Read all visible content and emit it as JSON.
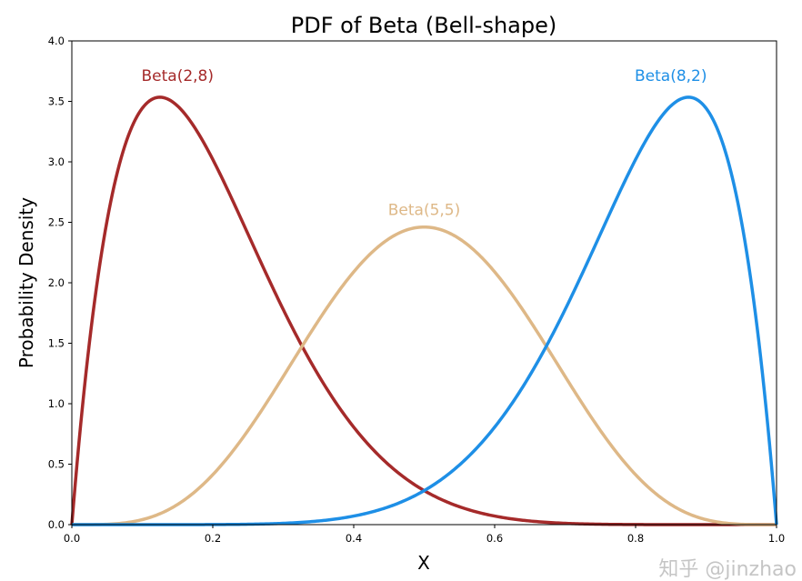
{
  "chart_data": {
    "type": "line",
    "title": "PDF of Beta (Bell-shape)",
    "xlabel": "X",
    "ylabel": "Probability Density",
    "xlim": [
      0,
      1
    ],
    "ylim": [
      0,
      4
    ],
    "xticks": [
      "0.0",
      "0.2",
      "0.4",
      "0.6",
      "0.8",
      "1.0"
    ],
    "yticks": [
      "0.0",
      "0.5",
      "1.0",
      "1.5",
      "2.0",
      "2.5",
      "3.0",
      "3.5",
      "4.0"
    ],
    "grid": false,
    "legend": "none",
    "series": [
      {
        "name": "Beta(2,8)",
        "alpha": 2,
        "beta": 8,
        "color": "#a52a2a",
        "label_pos": [
          0.15,
          3.67
        ]
      },
      {
        "name": "Beta(5,5)",
        "alpha": 5,
        "beta": 5,
        "color": "#deb887",
        "label_pos": [
          0.5,
          2.56
        ]
      },
      {
        "name": "Beta(8,2)",
        "alpha": 8,
        "beta": 2,
        "color": "#1e8fe6",
        "label_pos": [
          0.85,
          3.67
        ]
      }
    ]
  },
  "watermark": "知乎 @jinzhao"
}
